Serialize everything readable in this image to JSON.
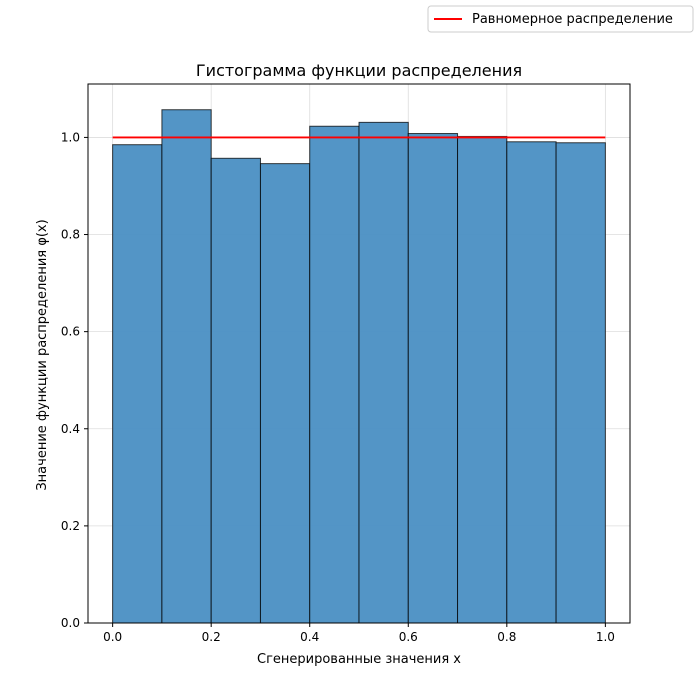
{
  "chart_data": {
    "type": "bar",
    "title": "Гистограмма функции распределения",
    "xlabel": "Сгенерированные значения x",
    "ylabel": "Значение функции распределения φ(x)",
    "bin_edges": [
      0.0,
      0.1,
      0.2,
      0.3,
      0.4,
      0.5,
      0.6,
      0.7,
      0.8,
      0.9,
      1.0
    ],
    "values": [
      0.985,
      1.057,
      0.957,
      0.946,
      1.023,
      1.031,
      1.008,
      1.002,
      0.991,
      0.989
    ],
    "reference_line": {
      "label": "Равномерное распределение",
      "x": [
        0.0,
        1.0
      ],
      "y": [
        1.0,
        1.0
      ],
      "color": "#ff0000"
    },
    "xlim": [
      -0.05,
      1.05
    ],
    "ylim": [
      0,
      1.11
    ],
    "xticks": [
      0.0,
      0.2,
      0.4,
      0.6,
      0.8,
      1.0
    ],
    "xtick_labels": [
      "0.0",
      "0.2",
      "0.4",
      "0.6",
      "0.8",
      "1.0"
    ],
    "yticks": [
      0.0,
      0.2,
      0.4,
      0.6,
      0.8,
      1.0
    ],
    "ytick_labels": [
      "0.0",
      "0.2",
      "0.4",
      "0.6",
      "0.8",
      "1.0"
    ],
    "grid": true,
    "legend_position": "top-right",
    "bar_color": "#4a8fc3",
    "bar_edge_color": "#000000"
  }
}
